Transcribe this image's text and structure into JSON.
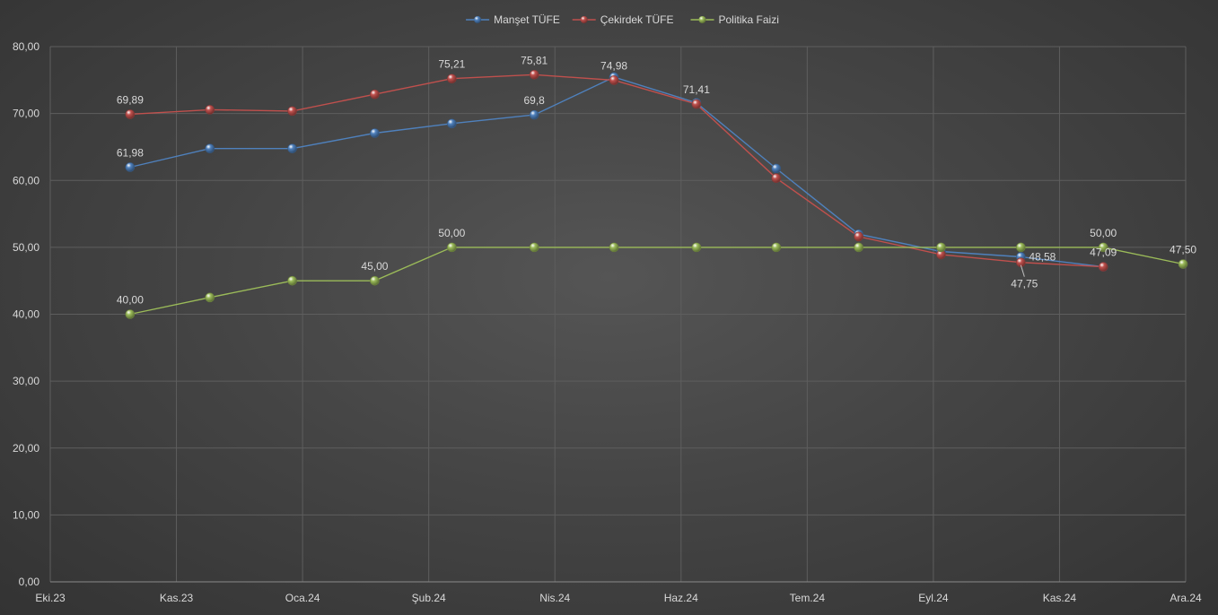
{
  "chart_data": {
    "type": "line",
    "title": "",
    "xlabel": "",
    "ylabel": "",
    "x_ticks": [
      "Eki.23",
      "Kas.23",
      "Oca.24",
      "Şub.24",
      "Nis.24",
      "Haz.24",
      "Tem.24",
      "Eyl.24",
      "Kas.24",
      "Ara.24"
    ],
    "x_range": [
      "2023-10-01",
      "2024-12-01"
    ],
    "ylim": [
      0,
      80
    ],
    "y_ticks": [
      "0,00",
      "10,00",
      "20,00",
      "30,00",
      "40,00",
      "50,00",
      "60,00",
      "70,00",
      "80,00"
    ],
    "grid": true,
    "legend_position": "top",
    "series": [
      {
        "name": "Manşet TÜFE",
        "color": "#4f81bd",
        "points": [
          {
            "x": "2023-10-31",
            "y": 61.98
          },
          {
            "x": "2023-11-30",
            "y": 64.77
          },
          {
            "x": "2023-12-31",
            "y": 64.77
          },
          {
            "x": "2024-01-31",
            "y": 67.07
          },
          {
            "x": "2024-02-29",
            "y": 68.5
          },
          {
            "x": "2024-03-31",
            "y": 69.8
          },
          {
            "x": "2024-04-30",
            "y": 75.45
          },
          {
            "x": "2024-05-31",
            "y": 71.6
          },
          {
            "x": "2024-06-30",
            "y": 61.78
          },
          {
            "x": "2024-07-31",
            "y": 51.97
          },
          {
            "x": "2024-08-31",
            "y": 49.38
          },
          {
            "x": "2024-09-30",
            "y": 48.58
          },
          {
            "x": "2024-10-31",
            "y": 47.09
          }
        ]
      },
      {
        "name": "Çekirdek TÜFE",
        "color": "#c0504d",
        "points": [
          {
            "x": "2023-10-31",
            "y": 69.89
          },
          {
            "x": "2023-11-30",
            "y": 70.57
          },
          {
            "x": "2023-12-31",
            "y": 70.37
          },
          {
            "x": "2024-01-31",
            "y": 72.87
          },
          {
            "x": "2024-02-29",
            "y": 75.21
          },
          {
            "x": "2024-03-31",
            "y": 75.81
          },
          {
            "x": "2024-04-30",
            "y": 74.98
          },
          {
            "x": "2024-05-31",
            "y": 71.41
          },
          {
            "x": "2024-06-30",
            "y": 60.34
          },
          {
            "x": "2024-07-31",
            "y": 51.61
          },
          {
            "x": "2024-08-31",
            "y": 48.92
          },
          {
            "x": "2024-09-30",
            "y": 47.75
          },
          {
            "x": "2024-10-31",
            "y": 47.09
          }
        ]
      },
      {
        "name": "Politika Faizi",
        "color": "#9bbb59",
        "points": [
          {
            "x": "2023-10-31",
            "y": 40.0
          },
          {
            "x": "2023-11-30",
            "y": 42.5
          },
          {
            "x": "2023-12-31",
            "y": 45.0
          },
          {
            "x": "2024-01-31",
            "y": 45.0
          },
          {
            "x": "2024-02-29",
            "y": 50.0
          },
          {
            "x": "2024-03-31",
            "y": 50.0
          },
          {
            "x": "2024-04-30",
            "y": 50.0
          },
          {
            "x": "2024-05-31",
            "y": 50.0
          },
          {
            "x": "2024-06-30",
            "y": 50.0
          },
          {
            "x": "2024-07-31",
            "y": 50.0
          },
          {
            "x": "2024-08-31",
            "y": 50.0
          },
          {
            "x": "2024-09-30",
            "y": 50.0
          },
          {
            "x": "2024-10-31",
            "y": 50.0
          },
          {
            "x": "2024-11-30",
            "y": 47.5
          }
        ]
      }
    ],
    "data_labels": [
      {
        "series": 0,
        "point": 0,
        "text": "61,98",
        "pos": "above"
      },
      {
        "series": 0,
        "point": 5,
        "text": "69,8",
        "pos": "above"
      },
      {
        "series": 0,
        "point": 11,
        "text": "48,58",
        "pos": "right"
      },
      {
        "series": 1,
        "point": 0,
        "text": "69,89",
        "pos": "above"
      },
      {
        "series": 1,
        "point": 4,
        "text": "75,21",
        "pos": "above"
      },
      {
        "series": 1,
        "point": 5,
        "text": "75,81",
        "pos": "above"
      },
      {
        "series": 1,
        "point": 6,
        "text": "74,98",
        "pos": "above"
      },
      {
        "series": 1,
        "point": 7,
        "text": "71,41",
        "pos": "above"
      },
      {
        "series": 1,
        "point": 11,
        "text": "47,75",
        "pos": "below-callout"
      },
      {
        "series": 1,
        "point": 12,
        "text": "47,09",
        "pos": "above"
      },
      {
        "series": 2,
        "point": 0,
        "text": "40,00",
        "pos": "above"
      },
      {
        "series": 2,
        "point": 3,
        "text": "45,00",
        "pos": "above"
      },
      {
        "series": 2,
        "point": 4,
        "text": "50,00",
        "pos": "above"
      },
      {
        "series": 2,
        "point": 12,
        "text": "50,00",
        "pos": "above"
      },
      {
        "series": 2,
        "point": 13,
        "text": "47,50",
        "pos": "above"
      }
    ]
  }
}
